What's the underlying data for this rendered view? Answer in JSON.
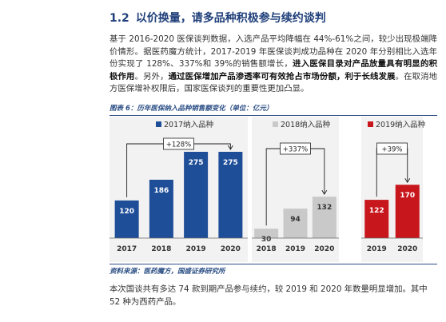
{
  "section": {
    "number": "1.2",
    "title": "以价换量，请多品种积极参与续约谈判"
  },
  "paragraph": {
    "part1": "基于 2016-2020 医保谈判数据，入选产品平均降幅在 44%-61%之间，较少出现极端降价情形。据医药魔方统计，2017-2019 年医保谈判成功品种在 2020 年分别相比入选年份实现了 128%、337%和 39%的销售额增长，",
    "bold1": "进入医保目录对产品放量具有明显的积极作用",
    "part2": "。另外，",
    "bold2": "通过医保增加产品渗透率可有效抢占市场份额，利于长线发展",
    "part3": "。在取消地方医保增补权限后，国家医保谈判的重要性更加凸显。"
  },
  "figure": {
    "caption": "图表 6：历年医保纳入品种销售额变化（单位：亿元）",
    "source": "资料来源：医药魔方，国盛证券研究所"
  },
  "paragraph2": "本次国谈共有多达 74 款到期产品参与续约，较 2019 和 2020 年数量明显增加。其中 52 种为西药产品。",
  "chart_data": [
    {
      "type": "bar",
      "name": "2017纳入品种",
      "color": "#1f4e99",
      "categories": [
        "2017",
        "2018",
        "2019",
        "2020"
      ],
      "values": [
        120,
        186,
        275,
        275
      ],
      "growth_label": "+128%"
    },
    {
      "type": "bar",
      "name": "2018纳入品种",
      "color": "#c9c9c9",
      "categories": [
        "2018",
        "2019",
        "2020"
      ],
      "values": [
        30,
        94,
        132
      ],
      "growth_label": "+337%"
    },
    {
      "type": "bar",
      "name": "2019纳入品种",
      "color": "#c8161d",
      "categories": [
        "2019",
        "2020"
      ],
      "values": [
        122,
        170
      ],
      "growth_label": "+39%"
    }
  ]
}
